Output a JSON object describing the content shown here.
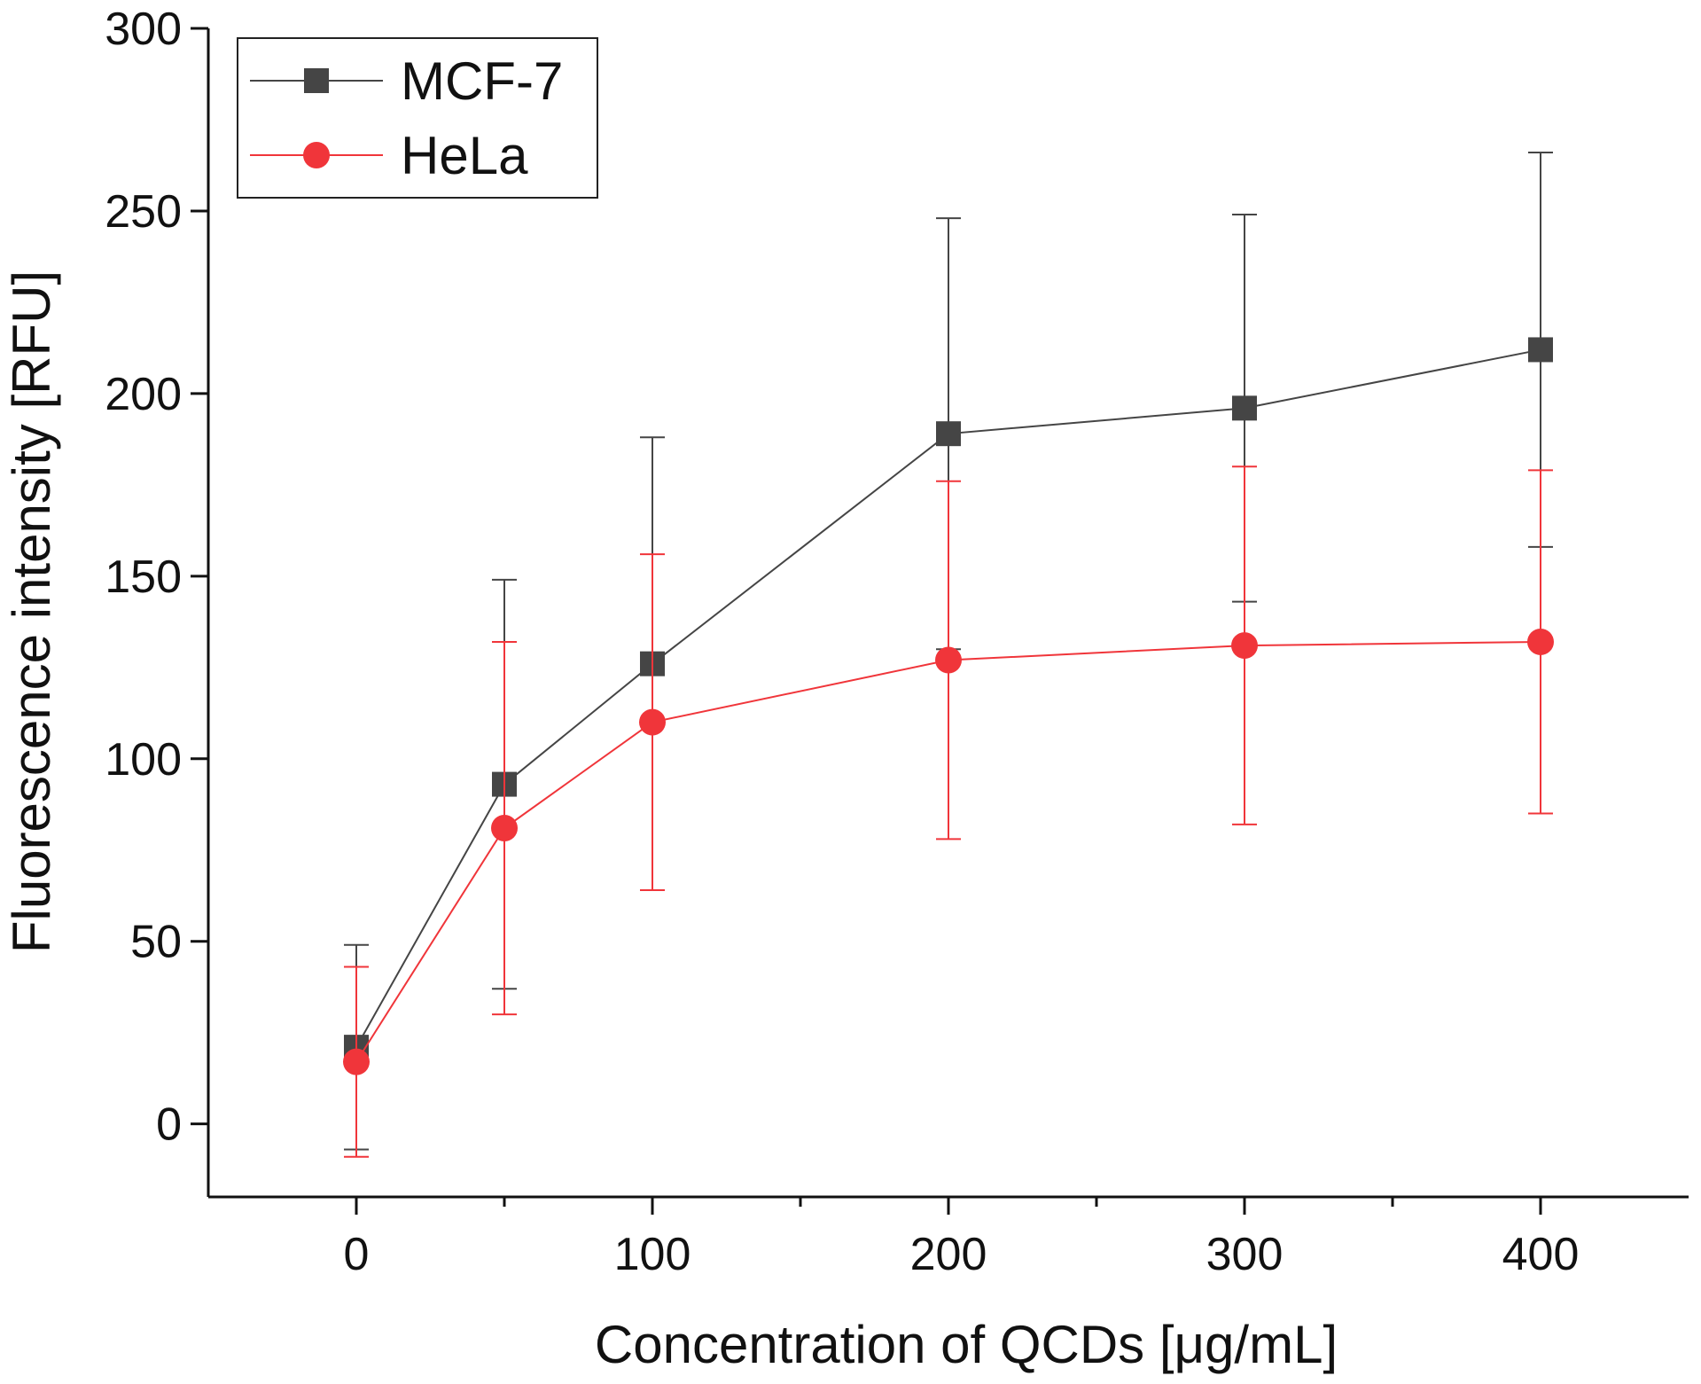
{
  "chart_data": {
    "type": "line",
    "title": "",
    "xlabel": "Concentration of QCDs [μg/mL]",
    "ylabel": "Fluorescence intensity [RFU]",
    "xlim": [
      -50,
      450
    ],
    "ylim": [
      -20,
      300
    ],
    "x_ticks": [
      0,
      100,
      200,
      300,
      400
    ],
    "x_minor_ticks": [
      50,
      150,
      250,
      350
    ],
    "y_ticks": [
      0,
      50,
      100,
      150,
      200,
      250,
      300
    ],
    "legend_position": "top-left",
    "series": [
      {
        "name": "MCF-7",
        "color": "#454545",
        "marker": "square",
        "x": [
          0,
          50,
          100,
          200,
          300,
          400
        ],
        "y": [
          21,
          93,
          126,
          189,
          196,
          212
        ],
        "error_low": [
          -7,
          37,
          64,
          130,
          143,
          158
        ],
        "error_high": [
          49,
          149,
          188,
          248,
          249,
          266
        ]
      },
      {
        "name": "HeLa",
        "color": "#f0353a",
        "marker": "circle",
        "x": [
          0,
          50,
          100,
          200,
          300,
          400
        ],
        "y": [
          17,
          81,
          110,
          127,
          131,
          132
        ],
        "error_low": [
          -9,
          30,
          64,
          78,
          82,
          85
        ],
        "error_high": [
          43,
          132,
          156,
          176,
          180,
          179
        ]
      }
    ]
  }
}
